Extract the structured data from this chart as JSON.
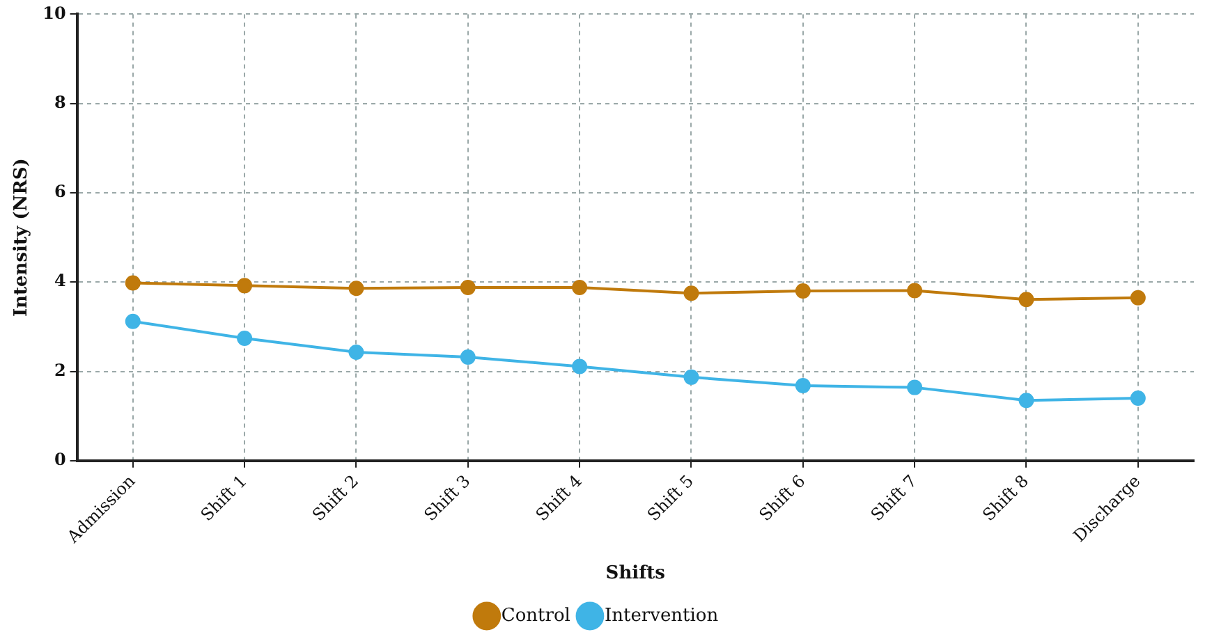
{
  "chart_data": {
    "type": "line",
    "xlabel": "Shifts",
    "ylabel": "Intensity (NRS)",
    "categories": [
      "Admission",
      "Shift 1",
      "Shift 2",
      "Shift 3",
      "Shift 4",
      "Shift 5",
      "Shift 6",
      "Shift 7",
      "Shift 8",
      "Discharge"
    ],
    "series": [
      {
        "name": "Control",
        "color": "#c07a0c",
        "values": [
          3.98,
          3.92,
          3.86,
          3.88,
          3.88,
          3.75,
          3.8,
          3.81,
          3.61,
          3.65
        ]
      },
      {
        "name": "Intervention",
        "color": "#3fb4e6",
        "values": [
          3.12,
          2.74,
          2.43,
          2.32,
          2.11,
          1.87,
          1.68,
          1.64,
          1.35,
          1.4
        ]
      }
    ],
    "ylim": [
      0,
      10
    ],
    "yticks": [
      0,
      2,
      4,
      6,
      8,
      10
    ],
    "grid": true,
    "legend": "bottom",
    "marker": "circle",
    "line_style": "solid"
  }
}
